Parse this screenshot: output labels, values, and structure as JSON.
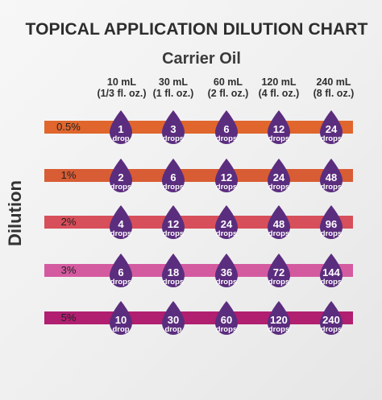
{
  "title": "TOPICAL APPLICATION DILUTION CHART",
  "subtitle": "Carrier Oil",
  "axis_label": "Dilution",
  "columns": [
    {
      "line1": "10 mL",
      "line2": "(1/3 fl. oz.)"
    },
    {
      "line1": "30 mL",
      "line2": "(1 fl. oz.)"
    },
    {
      "line1": "60 mL",
      "line2": "(2 fl. oz.)"
    },
    {
      "line1": "120 mL",
      "line2": "(4 fl. oz.)"
    },
    {
      "line1": "240 mL",
      "line2": "(8 fl. oz.)"
    }
  ],
  "rows": [
    {
      "label": "0.5%",
      "band_color": "#e0662d",
      "cells": [
        {
          "value": "1",
          "unit": "drop"
        },
        {
          "value": "3",
          "unit": "drops"
        },
        {
          "value": "6",
          "unit": "drops"
        },
        {
          "value": "12",
          "unit": "drops"
        },
        {
          "value": "24",
          "unit": "drops"
        }
      ]
    },
    {
      "label": "1%",
      "band_color": "#d85c34",
      "cells": [
        {
          "value": "2",
          "unit": "drops"
        },
        {
          "value": "6",
          "unit": "drops"
        },
        {
          "value": "12",
          "unit": "drops"
        },
        {
          "value": "24",
          "unit": "drops"
        },
        {
          "value": "48",
          "unit": "drops"
        }
      ]
    },
    {
      "label": "2%",
      "band_color": "#d64f5a",
      "cells": [
        {
          "value": "4",
          "unit": "drops"
        },
        {
          "value": "12",
          "unit": "drops"
        },
        {
          "value": "24",
          "unit": "drops"
        },
        {
          "value": "48",
          "unit": "drops"
        },
        {
          "value": "96",
          "unit": "drops"
        }
      ]
    },
    {
      "label": "3%",
      "band_color": "#d45aa0",
      "cells": [
        {
          "value": "6",
          "unit": "drops"
        },
        {
          "value": "18",
          "unit": "drops"
        },
        {
          "value": "36",
          "unit": "drops"
        },
        {
          "value": "72",
          "unit": "drops"
        },
        {
          "value": "144",
          "unit": "drops"
        }
      ]
    },
    {
      "label": "5%",
      "band_color": "#b01f70",
      "cells": [
        {
          "value": "10",
          "unit": "drop"
        },
        {
          "value": "30",
          "unit": "drop"
        },
        {
          "value": "60",
          "unit": "drops"
        },
        {
          "value": "120",
          "unit": "drops"
        },
        {
          "value": "240",
          "unit": "drops"
        }
      ]
    }
  ],
  "colors": {
    "drop": "#5b2d7e",
    "drop_highlight": "#7b4aa2",
    "text": "#333333"
  }
}
